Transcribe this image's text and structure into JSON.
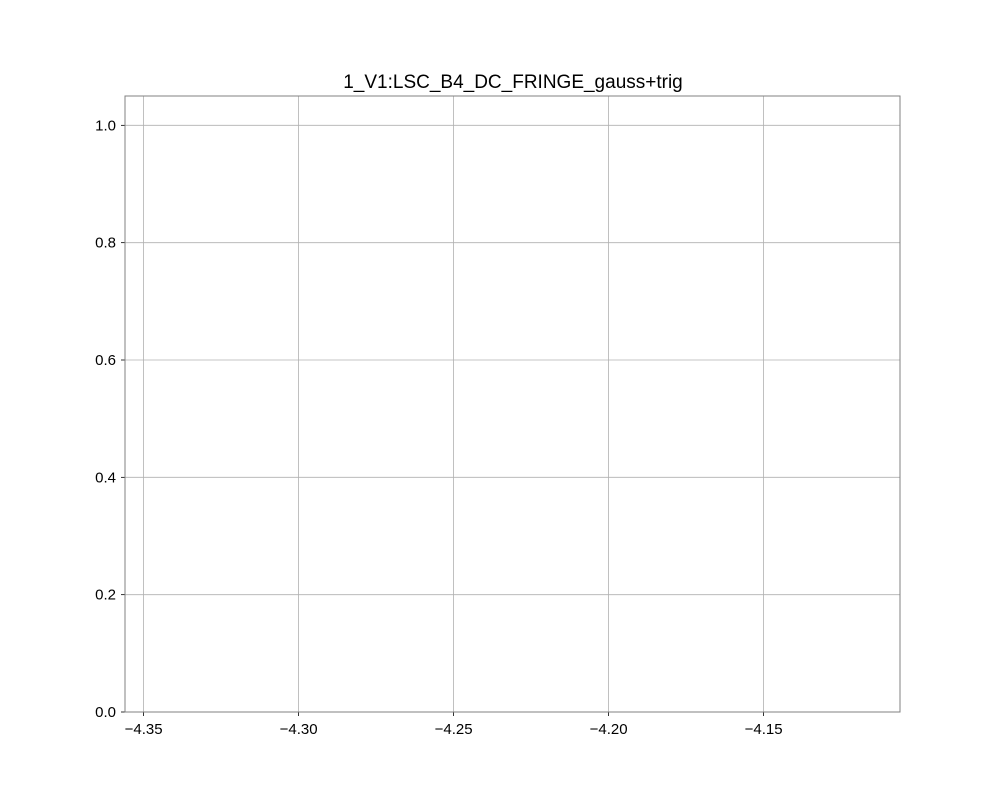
{
  "chart_data": {
    "type": "scatter",
    "title": "1_V1:LSC_B4_DC_FRINGE_gauss+trig",
    "xlabel": "",
    "ylabel": "",
    "xlim": [
      -4.356,
      -4.106
    ],
    "ylim": [
      0.0,
      1.05
    ],
    "x_ticks": [
      -4.35,
      -4.3,
      -4.25,
      -4.2,
      -4.15
    ],
    "x_tick_labels": [
      "−4.35",
      "−4.30",
      "−4.25",
      "−4.20",
      "−4.15"
    ],
    "y_ticks": [
      0.0,
      0.2,
      0.4,
      0.6,
      0.8,
      1.0
    ],
    "y_tick_labels": [
      "0.0",
      "0.2",
      "0.4",
      "0.6",
      "0.8",
      "1.0"
    ],
    "grid": true,
    "series": [],
    "colors": {
      "grid": "#b0b0b0",
      "frame": "#808080",
      "text": "#000000"
    }
  }
}
